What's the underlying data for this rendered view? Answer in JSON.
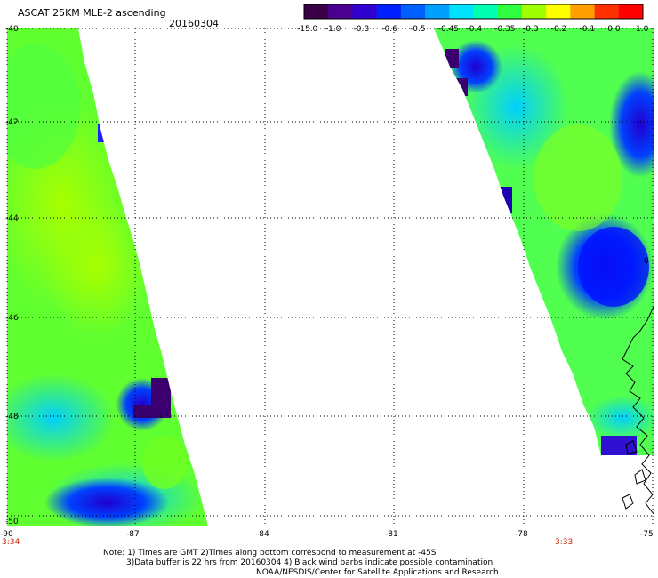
{
  "header": {
    "title": "ASCAT 25KM MLE-2 ascending",
    "date": "20160304"
  },
  "colorbar": {
    "ticks": [
      "-15.0",
      "-1.0",
      "-0.8",
      "-0.6",
      "-0.5",
      "-0.45",
      "-0.4",
      "-0.35",
      "-0.3",
      "-0.2",
      "-0.1",
      "0.0",
      "1.0"
    ],
    "colors": [
      "#3a0045",
      "#4a0090",
      "#3000d0",
      "#0020ff",
      "#0060ff",
      "#00a0ff",
      "#00e0ff",
      "#00ffb0",
      "#30ff40",
      "#a0ff00",
      "#ffff00",
      "#ffa000",
      "#ff3000",
      "#ff0000"
    ]
  },
  "axes": {
    "lat_labels": [
      "-40",
      "-42",
      "-44",
      "-46",
      "-48",
      "-50"
    ],
    "lon_labels": [
      "-90",
      "-87",
      "-84",
      "-81",
      "-78",
      "-75"
    ],
    "lat_range": [
      -50,
      -40
    ],
    "lon_range": [
      -90,
      -75
    ]
  },
  "time_labels": {
    "left": "3:34",
    "right": "3:33"
  },
  "notes": {
    "line1": "Note: 1) Times are GMT 2)Times along bottom correspond to measurement at -45S",
    "line2": "3)Data buffer is 22 hrs from 20160304 4) Black wind barbs indicate possible contamination",
    "line3": "NOAA/NESDIS/Center for Satellite Applications and Research"
  },
  "edge_label": "0"
}
